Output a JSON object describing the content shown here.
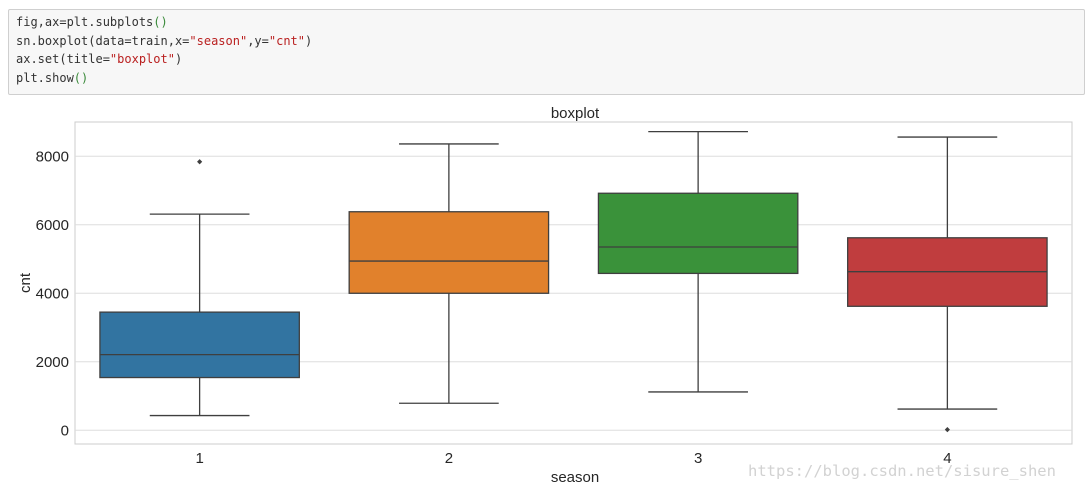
{
  "code_cell": {
    "lines": [
      [
        {
          "t": "fig,ax=plt.subplots",
          "k": "plain"
        },
        {
          "t": "()",
          "k": "paren"
        }
      ],
      [
        {
          "t": "sn.boxplot(data=train,x=",
          "k": "plain"
        },
        {
          "t": "\"season\"",
          "k": "str"
        },
        {
          "t": ",y=",
          "k": "plain"
        },
        {
          "t": "\"cnt\"",
          "k": "str"
        },
        {
          "t": ")",
          "k": "plain"
        }
      ],
      [
        {
          "t": "ax.set(title=",
          "k": "plain"
        },
        {
          "t": "\"boxplot\"",
          "k": "str"
        },
        {
          "t": ")",
          "k": "plain"
        }
      ],
      [
        {
          "t": "plt.show",
          "k": "plain"
        },
        {
          "t": "()",
          "k": "paren"
        }
      ]
    ]
  },
  "chart_data": {
    "type": "box",
    "title": "boxplot",
    "xlabel": "season",
    "ylabel": "cnt",
    "ylim": [
      -400,
      9000
    ],
    "yticks": [
      0,
      2000,
      4000,
      6000,
      8000
    ],
    "grid": true,
    "categories": [
      "1",
      "2",
      "3",
      "4"
    ],
    "boxes": [
      {
        "category": "1",
        "whisker_low": 430,
        "q1": 1540,
        "median": 2210,
        "q3": 3450,
        "whisker_high": 6310,
        "outliers": [
          7840
        ],
        "color": "#3274a1"
      },
      {
        "category": "2",
        "whisker_low": 790,
        "q1": 4000,
        "median": 4940,
        "q3": 6380,
        "whisker_high": 8360,
        "outliers": [],
        "color": "#e1812c"
      },
      {
        "category": "3",
        "whisker_low": 1120,
        "q1": 4580,
        "median": 5350,
        "q3": 6920,
        "whisker_high": 8720,
        "outliers": [],
        "color": "#3a923a"
      },
      {
        "category": "4",
        "whisker_low": 620,
        "q1": 3620,
        "median": 4630,
        "q3": 5620,
        "whisker_high": 8560,
        "outliers": [
          20
        ],
        "color": "#c03d3e"
      }
    ]
  },
  "watermark": "https://blog.csdn.net/sisure_shen"
}
